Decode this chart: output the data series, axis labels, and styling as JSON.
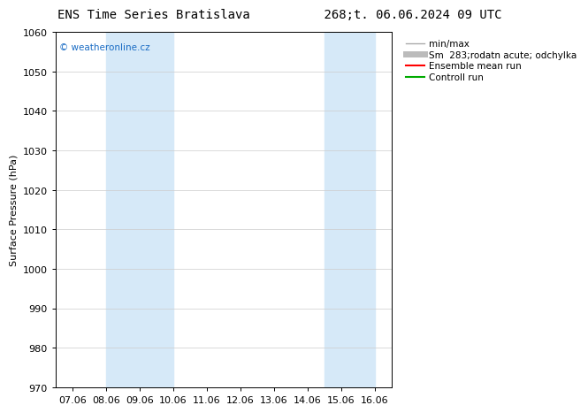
{
  "title_left": "ENS Time Series Bratislava",
  "title_right": "268;t. 06.06.2024 09 UTC",
  "ylabel": "Surface Pressure (hPa)",
  "ylim": [
    970,
    1060
  ],
  "yticks": [
    970,
    980,
    990,
    1000,
    1010,
    1020,
    1030,
    1040,
    1050,
    1060
  ],
  "xtick_labels": [
    "07.06",
    "08.06",
    "09.06",
    "10.06",
    "11.06",
    "12.06",
    "13.06",
    "14.06",
    "15.06",
    "16.06"
  ],
  "xtick_positions": [
    0,
    1,
    2,
    3,
    4,
    5,
    6,
    7,
    8,
    9
  ],
  "shade_bands": [
    {
      "xmin": 1.0,
      "xmax": 3.0
    },
    {
      "xmin": 7.5,
      "xmax": 9.0
    }
  ],
  "shade_color": "#d6e9f8",
  "watermark_text": "© weatheronline.cz",
  "watermark_color": "#1a6cc4",
  "background_color": "#ffffff",
  "plot_bg_color": "#ffffff",
  "grid_color": "#cccccc",
  "legend_labels": [
    "min/max",
    "Sm  283;rodatn acute; odchylka",
    "Ensemble mean run",
    "Controll run"
  ],
  "legend_colors": [
    "#aaaaaa",
    "#bbbbbb",
    "#ff0000",
    "#00aa00"
  ],
  "legend_lws": [
    1.0,
    5.0,
    1.5,
    1.5
  ],
  "title_fontsize": 10,
  "axis_fontsize": 8,
  "tick_fontsize": 8,
  "legend_fontsize": 7.5
}
